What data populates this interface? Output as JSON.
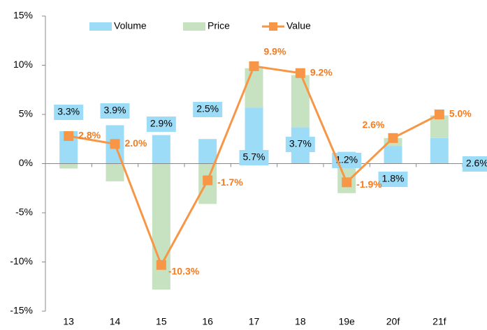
{
  "chart_data": {
    "type": "stacked-bar-line",
    "categories": [
      "13",
      "14",
      "15",
      "16",
      "17",
      "18",
      "19e",
      "20f",
      "21f"
    ],
    "series": [
      {
        "name": "Volume",
        "type": "bar",
        "color": "#9ddcf6",
        "values": [
          3.3,
          3.9,
          2.9,
          2.5,
          5.7,
          3.7,
          1.2,
          1.8,
          2.6
        ],
        "value_labels": [
          "3.3%",
          "3.9%",
          "2.9%",
          "2.5%",
          "5.7%",
          "3.7%",
          "1.2%",
          "1.8%",
          "2.6%"
        ]
      },
      {
        "name": "Price",
        "type": "bar",
        "color": "#c6e2c1",
        "values": [
          -0.5,
          -1.8,
          -12.8,
          -4.1,
          4.0,
          5.3,
          -3.0,
          0.8,
          2.3
        ]
      },
      {
        "name": "Value",
        "type": "line",
        "color": "#f79646",
        "values": [
          2.8,
          2.0,
          -10.3,
          -1.7,
          9.9,
          9.2,
          -1.9,
          2.6,
          5.0
        ],
        "value_labels": [
          "2.8%",
          "2.0%",
          "-10.3%",
          "-1.7%",
          "9.9%",
          "9.2%",
          "-1.9%",
          "2.6%",
          "5.0%"
        ]
      }
    ],
    "ylim": [
      -15,
      15
    ],
    "yticks": [
      {
        "value": -15,
        "label": "-15%"
      },
      {
        "value": -10,
        "label": "-10%"
      },
      {
        "value": -5,
        "label": "-5%"
      },
      {
        "value": 0,
        "label": "0%"
      },
      {
        "value": 5,
        "label": "5%"
      },
      {
        "value": 10,
        "label": "10%"
      },
      {
        "value": 15,
        "label": "15%"
      }
    ]
  }
}
